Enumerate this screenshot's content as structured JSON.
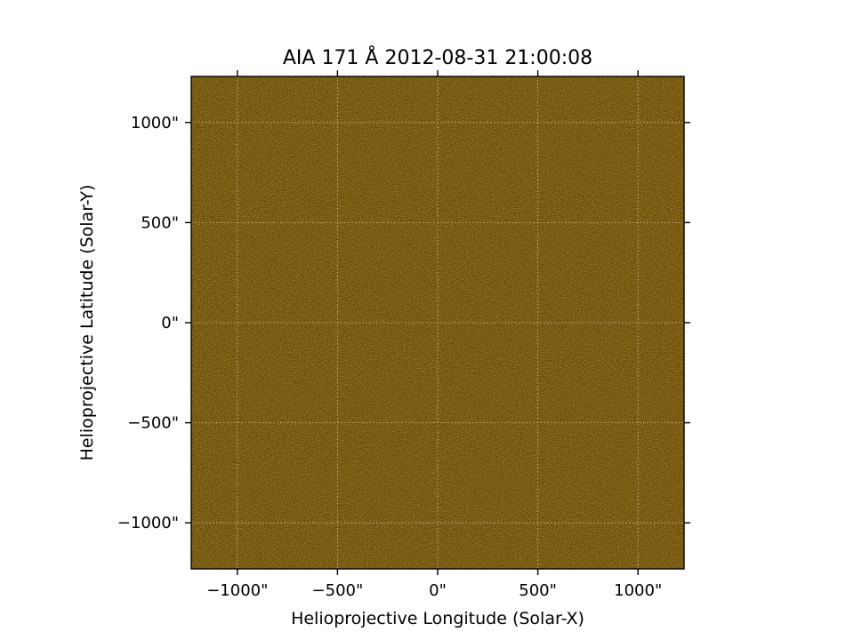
{
  "chart_data": {
    "type": "heatmap",
    "title": "AIA 171 Å 2012-08-31 21:00:08",
    "xlabel": "Helioprojective Longitude (Solar-X)",
    "ylabel": "Helioprojective Latitude (Solar-Y)",
    "xlim": [
      -1230,
      1230
    ],
    "ylim": [
      -1230,
      1230
    ],
    "x_ticks": [
      -1000,
      -500,
      0,
      500,
      1000
    ],
    "y_ticks": [
      -1000,
      -500,
      0,
      500,
      1000
    ],
    "x_tick_labels": [
      "−1000\"",
      "−500\"",
      "0\"",
      "500\"",
      "1000\""
    ],
    "y_tick_labels": [
      "−1000\"",
      "−500\"",
      "0\"",
      "500\"",
      "1000\""
    ],
    "grid": true,
    "grid_style": "dotted",
    "colormap": "sdoaia171",
    "image_base_color": "#6b4d0a",
    "image_noise_dark": "#3f2c05",
    "image_noise_light": "#8a6612"
  }
}
